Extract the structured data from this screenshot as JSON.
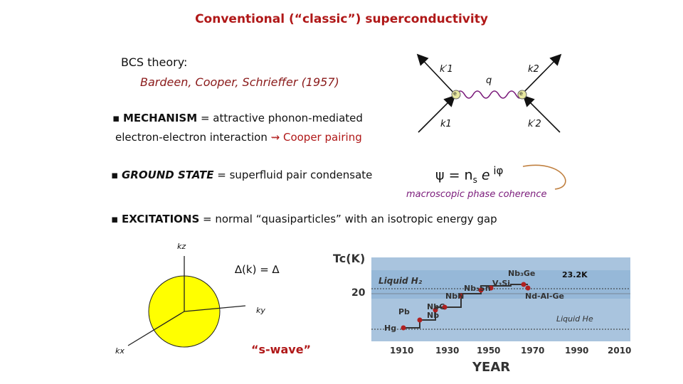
{
  "title": "Conventional (“classic”) superconductivity",
  "bcs": {
    "heading": "BCS theory:",
    "authors": "Bardeen, Cooper, Schrieffer (1957)"
  },
  "bullets": {
    "mark": "▪",
    "mechanism_key": "MECHANISM",
    "mechanism_text": " = attractive phonon-mediated",
    "mechanism_line2": "electron-electron interaction ",
    "mechanism_arrow": "⇝",
    "mechanism_result": " Cooper pairing",
    "ground_key": "GROUND STATE",
    "ground_text": " = superfluid pair condensate",
    "excitations_key": "EXCITATIONS",
    "excitations_text": " = normal “quasiparticles” with an isotropic energy gap"
  },
  "feynman": {
    "k1_prime": "k′1",
    "k2": "k2",
    "q": "q",
    "k1": "k1",
    "k2_prime": "k′2",
    "electron": "e"
  },
  "order_parameter": {
    "psi": "ψ = n",
    "sub": "s",
    "exp": " e",
    "sup": " iφ",
    "caption": "macroscopic phase coherence"
  },
  "gap": {
    "kz": "kz",
    "ky": "ky",
    "kx": "kx",
    "formula": "∆(k) = ∆",
    "wave": "“s-wave”"
  },
  "tc_chart": {
    "ylabel": "Tc(K)",
    "xlabel": "YEAR",
    "y_tick": "20",
    "x_ticks": [
      "1910",
      "1930",
      "1950",
      "1970",
      "1990",
      "2010"
    ],
    "annotations": {
      "liquid_h2": "Liquid H₂",
      "liquid_he": "Liquid He",
      "max": "23.2K"
    },
    "materials": [
      "Hg",
      "Pb",
      "Nb",
      "NbC",
      "NbN",
      "Nb₃Sn",
      "V₃Si",
      "Nb₃Ge",
      "Nd-Al-Ge"
    ],
    "colors": {
      "band": "#8fb4d6",
      "dots": "#b02020",
      "line": "#333333"
    }
  }
}
